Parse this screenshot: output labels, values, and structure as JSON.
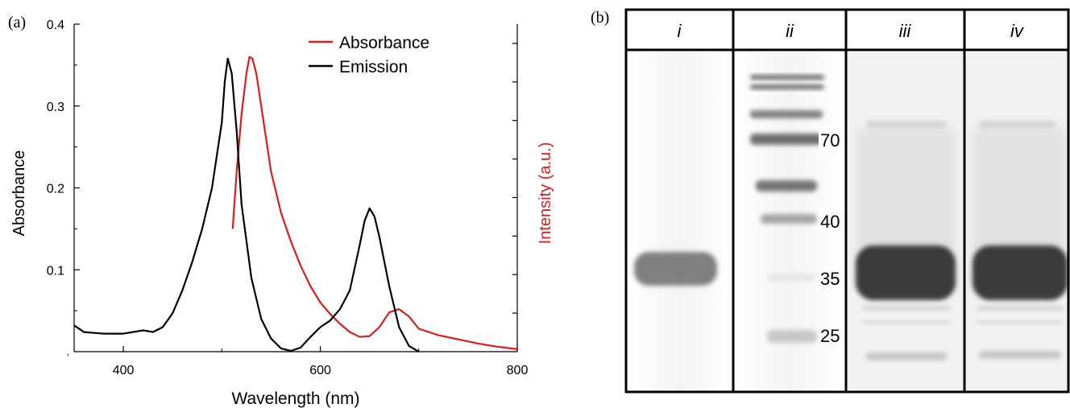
{
  "panels": {
    "a_label": "(a)",
    "b_label": "(b)"
  },
  "chart_data": [
    {
      "type": "line",
      "xlabel": "Wavelength (nm)",
      "ylabel": "Absorbance",
      "y2label": "Intensity (a.u.)",
      "xlim": [
        350,
        800
      ],
      "ylim": [
        0,
        0.4
      ],
      "x_ticks": [
        {
          "value": 400,
          "label": "400"
        },
        {
          "value": 600,
          "label": "600"
        },
        {
          "value": 800,
          "label": "800"
        }
      ],
      "y_ticks": [
        {
          "value": 0.1,
          "label": "0.1"
        },
        {
          "value": 0.2,
          "label": "0.2"
        },
        {
          "value": 0.3,
          "label": "0.3"
        },
        {
          "value": 0.4,
          "label": "0.4"
        }
      ],
      "y0_label": ",",
      "legend_position": "top-right",
      "colors": {
        "absorbance": "#e31a1c",
        "emission": "#000000"
      },
      "series": [
        {
          "name": "Absorbance",
          "color": "#e31a1c",
          "x": [
            511,
            515,
            520,
            525,
            528,
            531,
            535,
            540,
            545,
            550,
            560,
            570,
            580,
            590,
            600,
            610,
            620,
            630,
            640,
            650,
            660,
            670,
            680,
            690,
            700,
            720,
            740,
            760,
            780,
            800
          ],
          "y": [
            0.15,
            0.22,
            0.29,
            0.34,
            0.36,
            0.358,
            0.34,
            0.3,
            0.26,
            0.22,
            0.17,
            0.135,
            0.105,
            0.08,
            0.06,
            0.046,
            0.034,
            0.024,
            0.018,
            0.019,
            0.03,
            0.048,
            0.052,
            0.043,
            0.028,
            0.02,
            0.015,
            0.01,
            0.006,
            0.003
          ]
        },
        {
          "name": "Emission",
          "color": "#000000",
          "x": [
            350,
            360,
            380,
            400,
            415,
            420,
            430,
            440,
            450,
            460,
            470,
            480,
            490,
            500,
            503,
            506,
            510,
            515,
            520,
            530,
            540,
            550,
            560,
            570,
            580,
            590,
            600,
            610,
            620,
            630,
            640,
            645,
            650,
            655,
            660,
            670,
            680,
            690,
            700
          ],
          "y": [
            0.032,
            0.024,
            0.022,
            0.022,
            0.025,
            0.026,
            0.024,
            0.03,
            0.047,
            0.075,
            0.11,
            0.15,
            0.2,
            0.28,
            0.33,
            0.358,
            0.34,
            0.27,
            0.18,
            0.09,
            0.04,
            0.016,
            0.004,
            0.001,
            0.005,
            0.018,
            0.03,
            0.038,
            0.052,
            0.075,
            0.13,
            0.16,
            0.175,
            0.165,
            0.14,
            0.08,
            0.03,
            0.007,
            0
          ]
        }
      ]
    },
    {
      "type": "table",
      "lane_labels": [
        "i",
        "ii",
        "iii",
        "iv"
      ],
      "marker_labels": [
        "70",
        "40",
        "35",
        "25"
      ],
      "colors": {
        "band_dark": "#3a3a3a",
        "band_mid": "#7a7a7a",
        "band_light": "#cfcfcf"
      }
    }
  ]
}
